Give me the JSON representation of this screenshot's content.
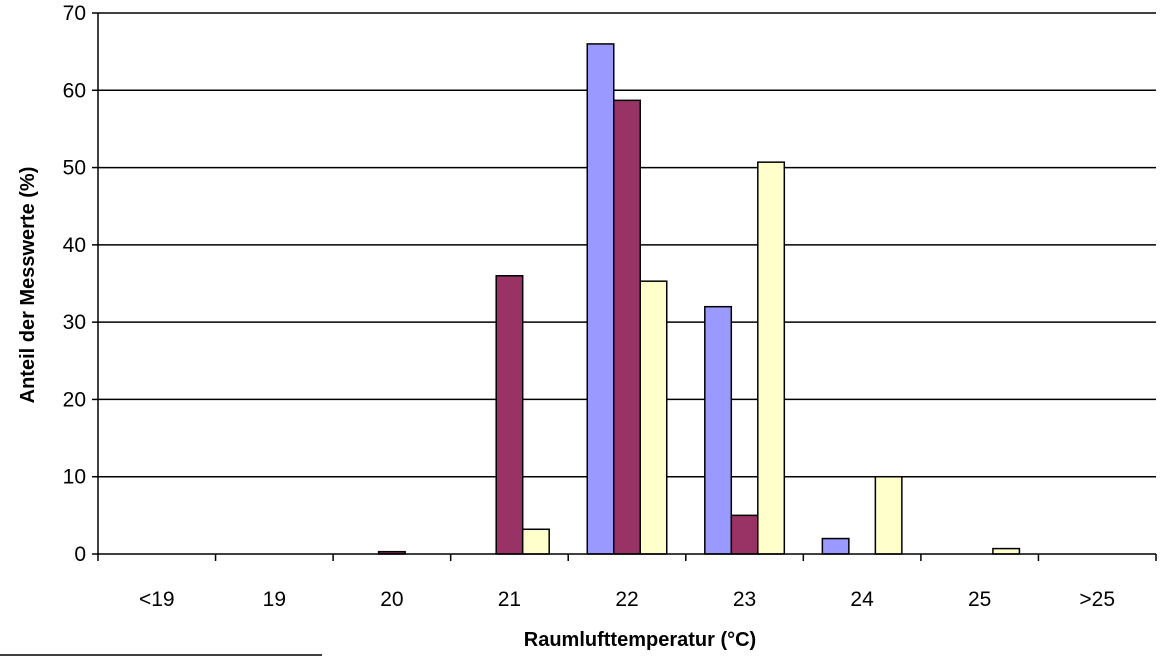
{
  "chart_data": {
    "type": "bar",
    "title": "",
    "xlabel": "Raumlufttemperatur (°C)",
    "ylabel": "Anteil der Messwerte (%)",
    "categories": [
      "<19",
      "19",
      "20",
      "21",
      "22",
      "23",
      "24",
      "25",
      ">25"
    ],
    "ylim": [
      0,
      70
    ],
    "yticks": [
      "0",
      "10",
      "20",
      "30",
      "40",
      "50",
      "60",
      "70"
    ],
    "grid": true,
    "legend": "none",
    "series": [
      {
        "color": "#9999ff",
        "values": [
          0,
          0,
          0,
          0,
          66,
          32,
          2,
          0,
          0
        ]
      },
      {
        "color": "#993366",
        "values": [
          0,
          0,
          0.3,
          36,
          58.7,
          5,
          0,
          0,
          0
        ]
      },
      {
        "color": "#ffffcc",
        "values": [
          0,
          0,
          0,
          3.2,
          35.3,
          50.7,
          10,
          0.7,
          0
        ]
      }
    ]
  }
}
